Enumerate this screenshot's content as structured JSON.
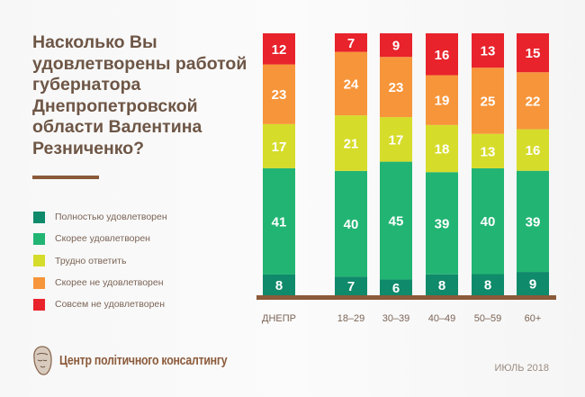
{
  "title": "Насколько Вы удовлетворены работой губернатора Днепропетровской области Валентина Резниченко?",
  "footer": {
    "org": "Центр політичного консалтингу",
    "date": "ИЮЛЬ 2018"
  },
  "chart_data": {
    "type": "bar",
    "stacked": true,
    "title": "Насколько Вы удовлетворены работой губернатора Днепропетровской области Валентина Резниченко?",
    "categories": [
      "ДНЕПР",
      "18–29",
      "30–39",
      "40–49",
      "50–59",
      "60+"
    ],
    "series": [
      {
        "name": "Полностью удовлетворен",
        "color": "#0f8a6a",
        "values": [
          8,
          7,
          6,
          8,
          8,
          9
        ]
      },
      {
        "name": "Скорее удовлетворен",
        "color": "#22b473",
        "values": [
          41,
          40,
          45,
          39,
          40,
          39
        ]
      },
      {
        "name": "Трудно ответить",
        "color": "#d6dc2a",
        "values": [
          17,
          21,
          17,
          18,
          13,
          16
        ]
      },
      {
        "name": "Скорее не удовлетворен",
        "color": "#f7953a",
        "values": [
          23,
          24,
          23,
          19,
          25,
          22
        ]
      },
      {
        "name": "Совсем не удовлетворен",
        "color": "#e8232c",
        "values": [
          12,
          7,
          9,
          16,
          13,
          15
        ]
      }
    ],
    "legend": "left",
    "grid": false,
    "axis_color": "#8b5a3a"
  }
}
